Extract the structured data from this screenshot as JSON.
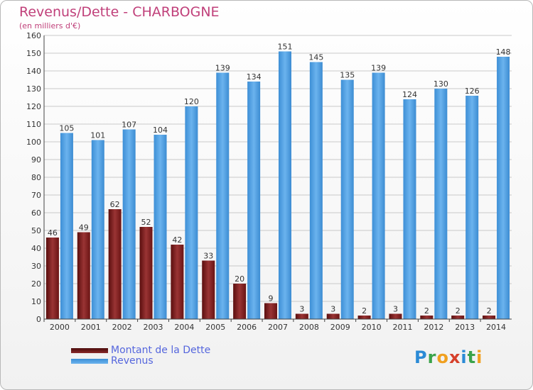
{
  "title": "Revenus/Dette - CHARBOGNE",
  "subtitle": "(en milliers d'€)",
  "logo": "Proxiti",
  "colors": {
    "dette": "#7b1c1c",
    "revenus": "#4e9fe0",
    "title": "#c0407a"
  },
  "chart_data": {
    "type": "bar",
    "categories": [
      "2000",
      "2001",
      "2002",
      "2003",
      "2004",
      "2005",
      "2006",
      "2007",
      "2008",
      "2009",
      "2010",
      "2011",
      "2012",
      "2013",
      "2014"
    ],
    "series": [
      {
        "name": "Montant de la Dette",
        "values": [
          46,
          49,
          62,
          52,
          42,
          33,
          20,
          9,
          3,
          3,
          2,
          3,
          2,
          2,
          2
        ]
      },
      {
        "name": "Revenus",
        "values": [
          105,
          101,
          107,
          104,
          120,
          139,
          134,
          151,
          145,
          135,
          139,
          124,
          130,
          126,
          148
        ]
      }
    ],
    "ylim": [
      0,
      160
    ],
    "yticks": [
      0,
      10,
      20,
      30,
      40,
      50,
      60,
      70,
      80,
      90,
      100,
      110,
      120,
      130,
      140,
      150,
      160
    ],
    "grid": true,
    "legend": "bottom-left"
  }
}
